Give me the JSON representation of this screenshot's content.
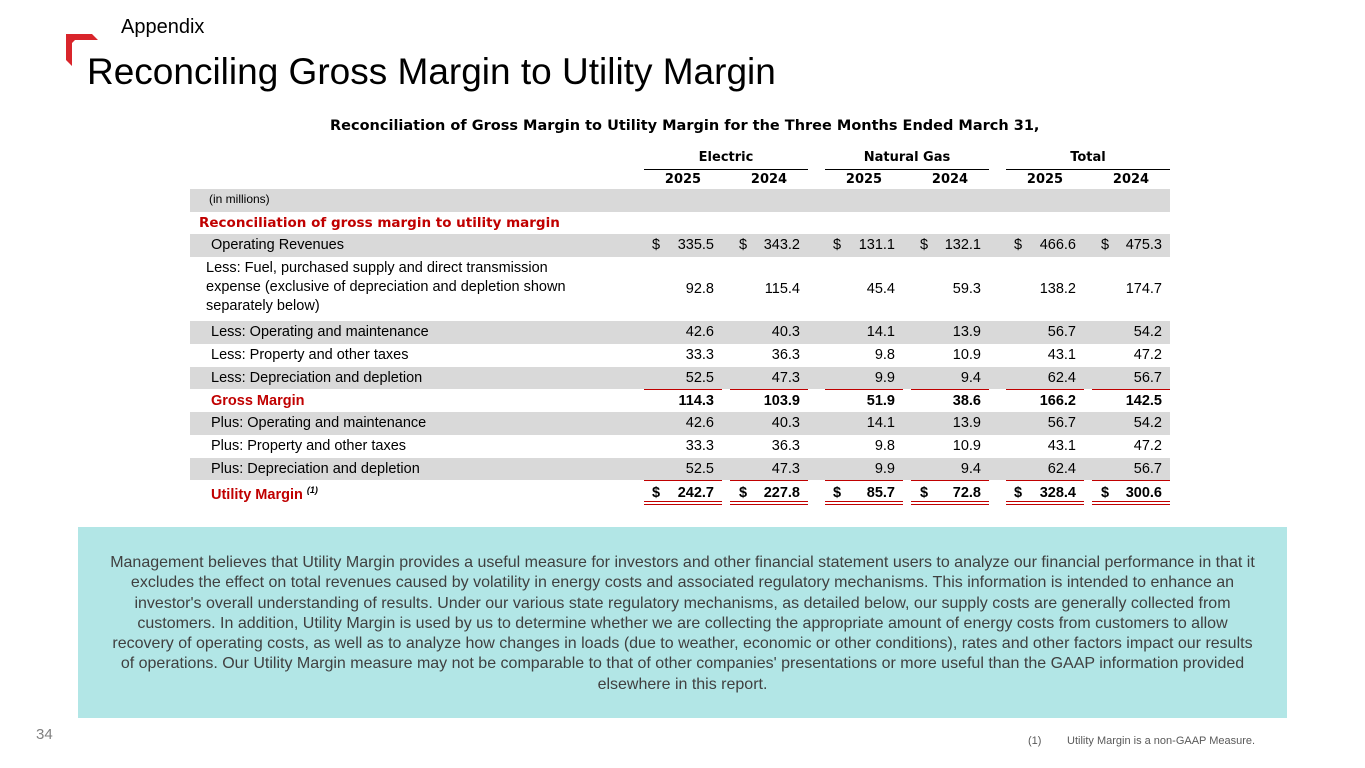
{
  "header": {
    "section_label": "Appendix",
    "title": "Reconciling Gross Margin to Utility Margin",
    "brand_color": "#d9252b"
  },
  "table": {
    "title": "Reconciliation of Gross Margin to Utility Margin for the Three Months Ended March 31,",
    "groups": [
      "Electric",
      "Natural Gas",
      "Total"
    ],
    "years": [
      "2025",
      "2024",
      "2025",
      "2024",
      "2025",
      "2024"
    ],
    "units": "(in millions)",
    "section_heading": "Reconciliation of gross margin to utility margin",
    "rows": [
      {
        "label": "Operating Revenues",
        "values": [
          "335.5",
          "343.2",
          "131.1",
          "132.1",
          "466.6",
          "475.3"
        ],
        "dollar": "$"
      },
      {
        "label": "Less:  Fuel, purchased supply and direct transmission expense (exclusive of depreciation and depletion shown separately below)",
        "values": [
          "92.8",
          "115.4",
          "45.4",
          "59.3",
          "138.2",
          "174.7"
        ]
      },
      {
        "label": "Less:  Operating and maintenance",
        "values": [
          "42.6",
          "40.3",
          "14.1",
          "13.9",
          "56.7",
          "54.2"
        ]
      },
      {
        "label": "Less:  Property and other taxes",
        "values": [
          "33.3",
          "36.3",
          "9.8",
          "10.9",
          "43.1",
          "47.2"
        ]
      },
      {
        "label": "Less:  Depreciation and depletion",
        "values": [
          "52.5",
          "47.3",
          "9.9",
          "9.4",
          "62.4",
          "56.7"
        ]
      },
      {
        "label": "Gross Margin",
        "values": [
          "114.3",
          "103.9",
          "51.9",
          "38.6",
          "166.2",
          "142.5"
        ]
      },
      {
        "label": "Plus:  Operating and maintenance",
        "values": [
          "42.6",
          "40.3",
          "14.1",
          "13.9",
          "56.7",
          "54.2"
        ]
      },
      {
        "label": "Plus:  Property and other taxes",
        "values": [
          "33.3",
          "36.3",
          "9.8",
          "10.9",
          "43.1",
          "47.2"
        ]
      },
      {
        "label": "Plus:  Depreciation and depletion",
        "values": [
          "52.5",
          "47.3",
          "9.9",
          "9.4",
          "62.4",
          "56.7"
        ]
      },
      {
        "label": "Utility Margin",
        "footnote_ref": "(1)",
        "values": [
          "242.7",
          "227.8",
          "85.7",
          "72.8",
          "328.4",
          "300.6"
        ],
        "dollar": "$"
      }
    ]
  },
  "note": {
    "text": "Management believes that Utility Margin provides a useful measure for investors and other financial statement users to analyze our financial performance in that it excludes the effect on total revenues caused by volatility in energy costs and associated regulatory mechanisms. This information is intended to enhance an investor's overall understanding of results. Under our various state regulatory mechanisms, as detailed below, our supply costs are generally collected from customers. In addition, Utility Margin is used by us to determine whether we are collecting the appropriate amount of energy costs from customers to allow recovery of operating costs, as well as to analyze how changes in loads (due to weather, economic or other conditions), rates and other factors impact our results of operations. Our Utility Margin measure may not be comparable to that of other companies' presentations or more useful than the GAAP information provided elsewhere in this report.",
    "background": "#b2e6e6"
  },
  "footer": {
    "page_number": "34",
    "footnote_mark": "(1)",
    "footnote_text": "Utility Margin is a non-GAAP Measure."
  }
}
